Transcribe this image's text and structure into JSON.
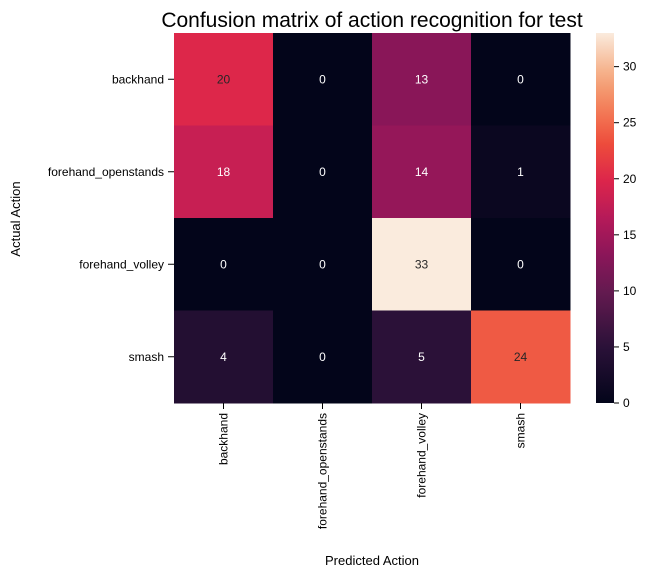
{
  "chart_data": {
    "type": "heatmap",
    "title": "Confusion matrix of action recognition for test",
    "xlabel": "Predicted Action",
    "ylabel": "Actual Action",
    "x_categories": [
      "backhand",
      "forehand_openstands",
      "forehand_volley",
      "smash"
    ],
    "y_categories": [
      "backhand",
      "forehand_openstands",
      "forehand_volley",
      "smash"
    ],
    "values": [
      [
        20,
        0,
        13,
        0
      ],
      [
        18,
        0,
        14,
        1
      ],
      [
        0,
        0,
        33,
        0
      ],
      [
        4,
        0,
        5,
        24
      ]
    ],
    "colorbar": {
      "range": [
        0,
        33
      ],
      "ticks": [
        0,
        5,
        10,
        15,
        20,
        25,
        30
      ],
      "colormap": "rocket"
    },
    "annotations": true,
    "grid": false
  }
}
